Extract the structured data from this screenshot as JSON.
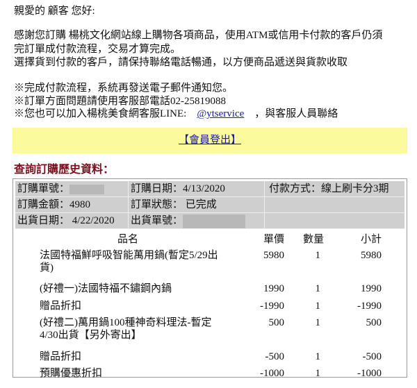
{
  "greeting": "親愛的 顧客 您好:",
  "paragraph": [
    "感謝您訂購 楊桃文化網站線上購物各項商品，使用ATM或信用卡付款的客戶仍須",
    "完訂單成付款流程，交易才算完成。",
    "選擇貨到付款的客戶，請保持聯絡電話暢通，以方便商品遞送與貨款收取"
  ],
  "notes": [
    "※完成付款流程，系統再發送電子郵件通知您。",
    "※訂單方面問題請使用客服部電話02-25819088"
  ],
  "line_note": {
    "prefix": "※您也可以加入楊桃美食網客服LINE:",
    "link": "@ytservice",
    "suffix": "，與客服人員聯絡"
  },
  "logout_link": "【會員登出】",
  "heading": "查詢訂購歷史資料：",
  "order": {
    "order_no_label": "訂購單號：",
    "order_date": "訂購日期：4/13/2020",
    "payment": "付款方式：線上刷卡分3期",
    "amount": "訂購金額：4980",
    "status_label": "訂單狀態：",
    "status": "已完成",
    "ship_date": "出貨日期： 4/22/2020",
    "ship_no_label": "出貨單號："
  },
  "items_header": {
    "name": "品名",
    "price": "單價",
    "qty": "數量",
    "subtotal": "小計"
  },
  "items": [
    {
      "name": "法國特福鮮呼吸智能萬用鍋(暫定5/29出貨)",
      "price": "5980",
      "qty": "1",
      "subtotal": "5980"
    },
    {
      "name": "(好禮一)法國特福不鏽鋼內鍋",
      "price": "1990",
      "qty": "1",
      "subtotal": "1990"
    },
    {
      "name": "贈品折扣",
      "price": "-1990",
      "qty": "1",
      "subtotal": "-1990"
    },
    {
      "name": "(好禮二)萬用鍋100種神奇料理法-暫定4/30出貨【另外寄出】",
      "price": "500",
      "qty": "1",
      "subtotal": "500"
    },
    {
      "name": "贈品折扣",
      "price": "-500",
      "qty": "1",
      "subtotal": "-500"
    },
    {
      "name": "預購優惠折扣",
      "price": "-1000",
      "qty": "1",
      "subtotal": "-1000"
    }
  ]
}
